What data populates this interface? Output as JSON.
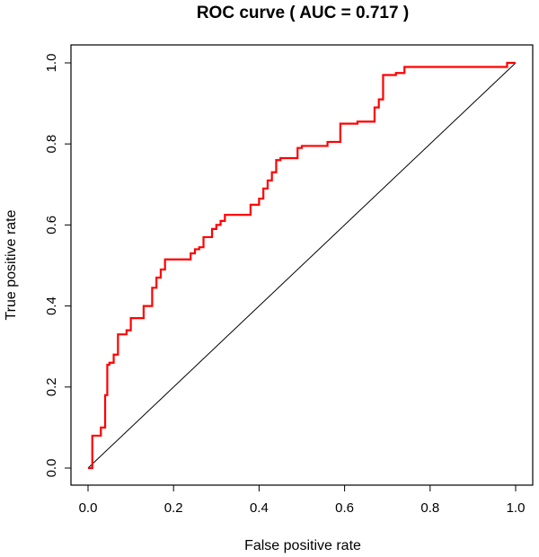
{
  "chart_data": {
    "type": "line",
    "title": "ROC curve ( AUC =  0.717 )",
    "xlabel": "False positive rate",
    "ylabel": "True positive rate",
    "xlim": [
      0,
      1
    ],
    "ylim": [
      0,
      1
    ],
    "x_ticks": [
      "0.0",
      "0.2",
      "0.4",
      "0.6",
      "0.8",
      "1.0"
    ],
    "y_ticks": [
      "0.0",
      "0.2",
      "0.4",
      "0.6",
      "0.8",
      "1.0"
    ],
    "grid": false,
    "legend": "none",
    "reference_line": {
      "x": [
        0,
        1
      ],
      "y": [
        0,
        1
      ],
      "color": "#000000"
    },
    "series": [
      {
        "color": "#ff0000",
        "x": [
          0.0,
          0.01,
          0.01,
          0.03,
          0.03,
          0.04,
          0.04,
          0.045,
          0.045,
          0.05,
          0.05,
          0.06,
          0.06,
          0.07,
          0.07,
          0.09,
          0.09,
          0.1,
          0.1,
          0.12,
          0.12,
          0.13,
          0.13,
          0.15,
          0.15,
          0.16,
          0.16,
          0.17,
          0.17,
          0.18,
          0.18,
          0.24,
          0.24,
          0.25,
          0.25,
          0.26,
          0.26,
          0.27,
          0.27,
          0.29,
          0.29,
          0.3,
          0.3,
          0.31,
          0.31,
          0.32,
          0.32,
          0.38,
          0.38,
          0.4,
          0.4,
          0.41,
          0.41,
          0.42,
          0.42,
          0.43,
          0.43,
          0.44,
          0.44,
          0.45,
          0.45,
          0.49,
          0.49,
          0.5,
          0.5,
          0.56,
          0.56,
          0.59,
          0.59,
          0.63,
          0.63,
          0.67,
          0.67,
          0.68,
          0.68,
          0.69,
          0.69,
          0.7,
          0.7,
          0.72,
          0.72,
          0.74,
          0.74,
          0.75,
          0.75,
          0.92,
          0.92,
          0.98,
          0.98,
          1.0
        ],
        "y": [
          0.0,
          0.0,
          0.08,
          0.08,
          0.1,
          0.1,
          0.18,
          0.18,
          0.255,
          0.255,
          0.26,
          0.26,
          0.28,
          0.28,
          0.33,
          0.33,
          0.34,
          0.34,
          0.37,
          0.37,
          0.37,
          0.37,
          0.4,
          0.4,
          0.445,
          0.445,
          0.47,
          0.47,
          0.49,
          0.49,
          0.515,
          0.515,
          0.53,
          0.53,
          0.54,
          0.54,
          0.545,
          0.545,
          0.57,
          0.57,
          0.59,
          0.59,
          0.6,
          0.6,
          0.61,
          0.61,
          0.625,
          0.625,
          0.65,
          0.65,
          0.665,
          0.665,
          0.69,
          0.69,
          0.71,
          0.71,
          0.73,
          0.73,
          0.76,
          0.76,
          0.765,
          0.765,
          0.79,
          0.79,
          0.795,
          0.795,
          0.805,
          0.805,
          0.85,
          0.85,
          0.855,
          0.855,
          0.89,
          0.89,
          0.91,
          0.91,
          0.97,
          0.97,
          0.97,
          0.97,
          0.975,
          0.975,
          0.99,
          0.99,
          0.99,
          0.99,
          0.99,
          0.99,
          1.0,
          1.0
        ]
      }
    ]
  }
}
